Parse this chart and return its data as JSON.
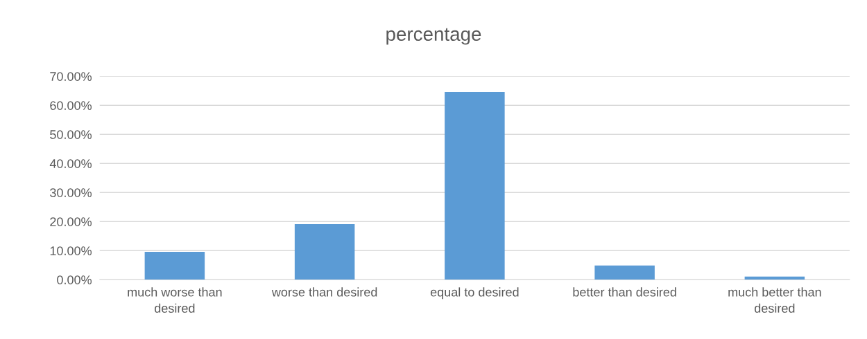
{
  "chart_data": {
    "type": "bar",
    "title": "percentage",
    "categories": [
      "much worse than desired",
      "worse than desired",
      "equal to desired",
      "better than desired",
      "much better than desired"
    ],
    "values": [
      9.6,
      19.1,
      64.6,
      4.9,
      1.1
    ],
    "color": "#5b9bd5",
    "ylim": [
      0,
      70
    ],
    "yticks": [
      {
        "value": 0,
        "label": "0.00%"
      },
      {
        "value": 10,
        "label": "10.00%"
      },
      {
        "value": 20,
        "label": "20.00%"
      },
      {
        "value": 30,
        "label": "30.00%"
      },
      {
        "value": 40,
        "label": "40.00%"
      },
      {
        "value": 50,
        "label": "50.00%"
      },
      {
        "value": 60,
        "label": "60.00%"
      },
      {
        "value": 70,
        "label": "70.00%"
      }
    ],
    "grid": "y",
    "legend": false
  }
}
